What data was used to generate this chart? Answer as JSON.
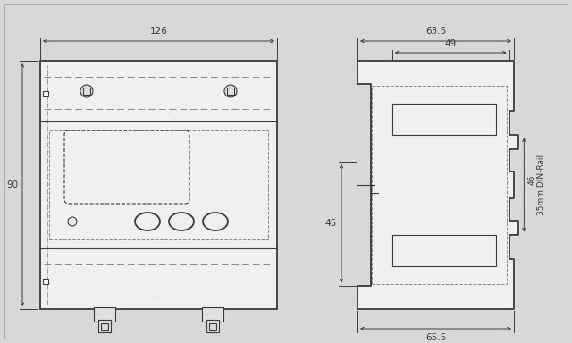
{
  "bg_color": "#d8d8d8",
  "line_color": "#3a3a3a",
  "dim_color": "#3a3a3a",
  "dash_color": "#888888",
  "figsize": [
    6.4,
    3.84
  ],
  "dpi": 100,
  "dims": {
    "d126": "126",
    "d90": "90",
    "d63_5": "63.5",
    "d49": "49",
    "d65_5": "65.5",
    "d45": "45",
    "d46": "46",
    "din_rail": "35mm DIN-Rail"
  }
}
